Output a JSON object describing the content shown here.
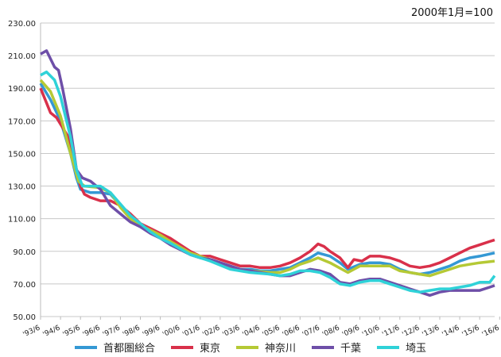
{
  "chart_data": {
    "type": "line",
    "title": "2000年1月=100",
    "ylim": [
      50,
      230
    ],
    "yticks": [
      "230.00",
      "210.00",
      "190.00",
      "170.00",
      "150.00",
      "130.00",
      "110.00",
      "90.00",
      "70.00",
      "50.00"
    ],
    "xticks": [
      "'93/6",
      "'94/6",
      "'95/6",
      "'96/6",
      "'97/6",
      "'98/6",
      "'99/6",
      "'00/6",
      "'01/6",
      "'02/6",
      "'03/6",
      "'04/6",
      "'05/6",
      "'06/6",
      "'07/6",
      "'08/6",
      "'09/6",
      "'10/6",
      "'11/6",
      "'12/6",
      "'13/6",
      "'14/6",
      "'15/6",
      "'16/6"
    ],
    "grid": true,
    "legend": "bottom",
    "series": [
      {
        "name": "首都圏総合",
        "color": "#3498d4",
        "x": [
          1993.5,
          1994,
          1994.5,
          1995,
          1995.3,
          1995.5,
          1996,
          1996.5,
          1997,
          1997.5,
          1998,
          1998.5,
          1999,
          1999.5,
          2000,
          2000.5,
          2001,
          2001.5,
          2002,
          2002.5,
          2003,
          2003.5,
          2004,
          2004.5,
          2005,
          2005.5,
          2006,
          2006.5,
          2007,
          2007.4,
          2008,
          2008.5,
          2008.9,
          2009.5,
          2010,
          2010.5,
          2011,
          2011.5,
          2012,
          2012.5,
          2013,
          2013.5,
          2014,
          2014.5,
          2015,
          2015.5,
          2016.25
        ],
        "y": [
          193,
          183,
          170,
          150,
          135,
          128,
          126,
          126,
          125,
          118,
          112,
          107,
          103,
          99,
          96,
          92,
          88,
          86,
          85,
          83,
          81,
          79,
          79,
          78,
          78,
          79,
          80,
          83,
          86,
          89,
          87,
          83,
          79,
          82,
          83,
          83,
          82,
          79,
          77,
          76,
          77,
          79,
          81,
          84,
          86,
          87,
          89
        ]
      },
      {
        "name": "東京",
        "color": "#d9304a",
        "x": [
          1993.5,
          1993.8,
          1994,
          1994.3,
          1994.6,
          1994.9,
          1995.1,
          1995.3,
          1995.5,
          1995.7,
          1996,
          1996.5,
          1997,
          1997.5,
          1998,
          1998.5,
          1999,
          1999.5,
          2000,
          2000.5,
          2001,
          2001.5,
          2002,
          2002.5,
          2003,
          2003.5,
          2004,
          2004.5,
          2005,
          2005.5,
          2006,
          2006.5,
          2007,
          2007.4,
          2007.7,
          2008,
          2008.5,
          2008.9,
          2009.2,
          2009.6,
          2010,
          2010.5,
          2011,
          2011.5,
          2012,
          2012.5,
          2013,
          2013.5,
          2014,
          2014.5,
          2015,
          2015.5,
          2016,
          2016.25
        ],
        "y": [
          190,
          181,
          175,
          172,
          166,
          160,
          150,
          140,
          130,
          125,
          123,
          121,
          121,
          118,
          113,
          107,
          104,
          101,
          98,
          94,
          90,
          87,
          87,
          85,
          83,
          81,
          81,
          80,
          80,
          81,
          83,
          86,
          90,
          94.5,
          93,
          90,
          86,
          80,
          85,
          84,
          87,
          87,
          86,
          84,
          81,
          80,
          81,
          83,
          86,
          89,
          92,
          94,
          96,
          97
        ]
      },
      {
        "name": "神奈川",
        "color": "#b5c935",
        "x": [
          1993.5,
          1994,
          1994.5,
          1995,
          1995.4,
          1995.7,
          1996.5,
          1997,
          1997.5,
          1998,
          1998.5,
          1999,
          1999.5,
          2000,
          2001,
          2002,
          2003,
          2004,
          2005,
          2005.5,
          2006,
          2006.5,
          2007,
          2007.4,
          2008,
          2008.9,
          2009.5,
          2010,
          2011,
          2011.5,
          2012,
          2012.5,
          2013,
          2013.5,
          2014,
          2014.5,
          2015,
          2015.5,
          2016.25
        ],
        "y": [
          195,
          188,
          173,
          150,
          133,
          130,
          129,
          126,
          117,
          110,
          106,
          103,
          100,
          96,
          89,
          85,
          80,
          78,
          77,
          77,
          79,
          82,
          84,
          86,
          83,
          77,
          81,
          81,
          81,
          78,
          77,
          76,
          75,
          77,
          79,
          81,
          82,
          83,
          84
        ]
      },
      {
        "name": "千葉",
        "color": "#6e4fa8",
        "x": [
          1993.5,
          1993.8,
          1994.2,
          1994.4,
          1994.6,
          1995,
          1995.3,
          1995.6,
          1996,
          1996.5,
          1997,
          1997.5,
          1998,
          1998.5,
          1999,
          1999.5,
          2000,
          2000.5,
          2001,
          2001.5,
          2002,
          2002.5,
          2003,
          2003.5,
          2004,
          2004.5,
          2005,
          2005.5,
          2006,
          2006.5,
          2007,
          2007.5,
          2008,
          2008.5,
          2009,
          2009.5,
          2010,
          2010.5,
          2011,
          2011.5,
          2012,
          2012.5,
          2013,
          2013.5,
          2014,
          2014.5,
          2015,
          2015.5,
          2016,
          2016.25
        ],
        "y": [
          211,
          213,
          203,
          201,
          190,
          165,
          140,
          135,
          133,
          128,
          118,
          113,
          108,
          105,
          101,
          98,
          94,
          91,
          88,
          86,
          85,
          83,
          81,
          79,
          78,
          77,
          76,
          75,
          75,
          77,
          79,
          78,
          76,
          71,
          70,
          72,
          73,
          73,
          71,
          69,
          67,
          65,
          63,
          65,
          66,
          66,
          66,
          66,
          68,
          69
        ]
      },
      {
        "name": "埼玉",
        "color": "#2fd2d8",
        "x": [
          1993.5,
          1993.8,
          1994.2,
          1994.5,
          1995,
          1995.3,
          1995.6,
          1996,
          1996.5,
          1997,
          1997.5,
          1998,
          1998.5,
          1999,
          1999.5,
          2000,
          2001,
          2002,
          2003,
          2004,
          2005,
          2005.5,
          2006,
          2006.5,
          2007,
          2007.5,
          2008,
          2008.5,
          2009,
          2009.5,
          2010,
          2010.5,
          2011,
          2011.5,
          2012,
          2012.5,
          2013,
          2013.5,
          2014,
          2014.5,
          2015,
          2015.5,
          2016,
          2016.25
        ],
        "y": [
          198,
          200,
          195,
          185,
          160,
          140,
          130,
          130,
          130,
          126,
          119,
          112,
          107,
          102,
          98,
          95,
          88,
          84,
          79,
          77,
          76,
          75,
          76,
          78,
          78,
          77,
          74,
          70,
          69,
          71,
          72,
          72,
          70,
          68,
          66,
          65,
          66,
          67,
          67,
          68,
          69,
          71,
          71,
          75
        ]
      }
    ]
  }
}
